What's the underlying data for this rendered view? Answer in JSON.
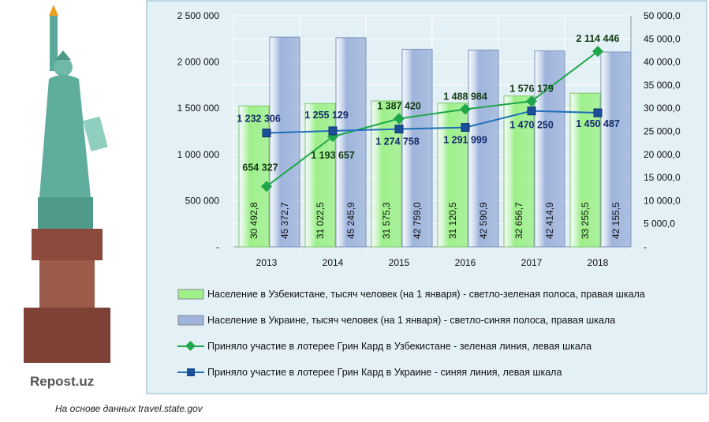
{
  "brand": "Repost.uz",
  "note": "На основе данных travel.state.gov",
  "chart_data": {
    "type": "bar",
    "categories": [
      "2013",
      "2014",
      "2015",
      "2016",
      "2017",
      "2018"
    ],
    "left_axis": {
      "range": [
        0,
        2500000
      ],
      "ticks": [
        "-",
        "500 000",
        "1 000 000",
        "1 500 000",
        "2 000 000",
        "2 500 000"
      ]
    },
    "right_axis": {
      "range": [
        0,
        50000
      ],
      "ticks": [
        "-",
        "5 000,0",
        "10 000,0",
        "15 000,0",
        "20 000,0",
        "25 000,0",
        "30 000,0",
        "35 000,0",
        "40 000,0",
        "45 000,0",
        "50 000,0"
      ]
    },
    "grid": true,
    "legend_placement": "bottom",
    "series": [
      {
        "name": "Население в Узбекистане, тысяч человек (на 1 января) - светло-зеленая полоса, правая шкала",
        "kind": "bar",
        "axis": "right",
        "color": "#9ef08a",
        "values": [
          30492.8,
          31022.5,
          31575.3,
          31120.5,
          32656.7,
          33255.5
        ],
        "labels": [
          "30 492,8",
          "31 022,5",
          "31 575,3",
          "31 120,5",
          "32 656,7",
          "33 255,5"
        ]
      },
      {
        "name": "Население в Украине, тысяч человек (на 1 января) - светло-синяя полоса, правая шкала",
        "kind": "bar",
        "axis": "right",
        "color": "#9fb4dc",
        "values": [
          45372.7,
          45245.9,
          42759.0,
          42590.9,
          42414.9,
          42155.5
        ],
        "labels": [
          "45 372,7",
          "45 245,9",
          "42 759,0",
          "42 590,9",
          "42 414,9",
          "42 155,5"
        ]
      },
      {
        "name": "Приняло участие в лотерее Грин Кард в Узбекистане - зеленая линия, левая шкала",
        "kind": "line",
        "axis": "left",
        "color": "#1fa64a",
        "values": [
          654327,
          1193657,
          1387420,
          1488984,
          1576179,
          2114446
        ],
        "labels": [
          "654 327",
          "1 193 657",
          "1 387 420",
          "1 488 984",
          "1 576 179",
          "2 114 446"
        ]
      },
      {
        "name": "Приняло участие в лотерее Грин Кард в Украине - синяя линия, левая шкала",
        "kind": "line",
        "axis": "left",
        "color": "#1f6fb8",
        "values": [
          1232306,
          1255129,
          1274758,
          1291999,
          1470250,
          1450487
        ],
        "labels": [
          "1 232 306",
          "1 255 129",
          "1 274 758",
          "1 291 999",
          "1 470 250",
          "1 450 487"
        ]
      }
    ]
  }
}
